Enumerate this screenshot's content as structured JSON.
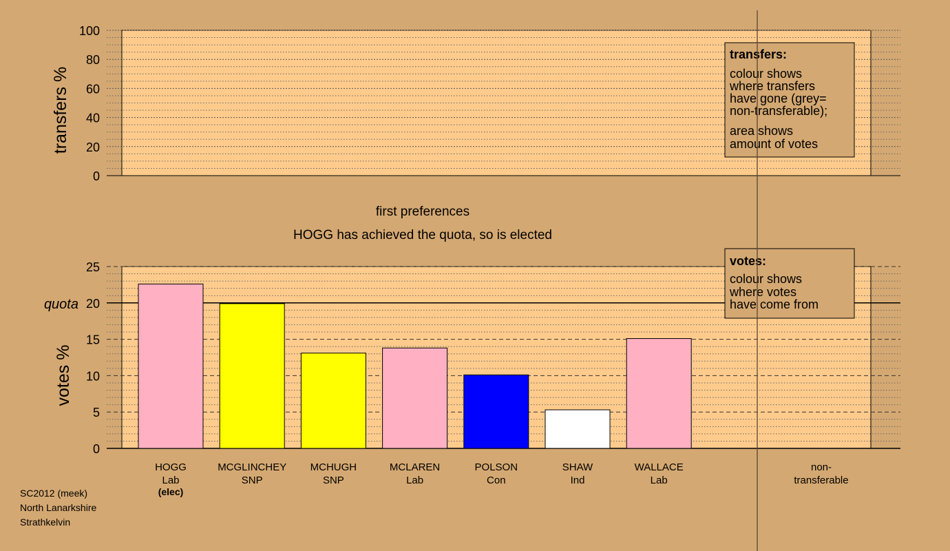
{
  "footer": [
    "SC2012 (meek)",
    "North Lanarkshire",
    "Strathkelvin"
  ],
  "captions": {
    "stage": "first preferences",
    "status": "HOGG has achieved the quota, so is elected"
  },
  "legend_transfers": {
    "title": "transfers:",
    "lines": [
      "colour shows",
      "where transfers",
      "have gone (grey=",
      "non-transferable);",
      "area shows",
      "amount of votes"
    ]
  },
  "legend_votes": {
    "title": "votes:",
    "lines": [
      "colour shows",
      "where votes",
      "have come from"
    ]
  },
  "colors": {
    "background": "#d4a872",
    "plot_bg": "#fecb8c",
    "Lab": "#ffb0c2",
    "SNP": "#ffff00",
    "Con": "#0000ff",
    "Ind": "#ffffff"
  },
  "chart_data": [
    {
      "type": "bar",
      "ylabel": "transfers %",
      "ylim": [
        0,
        100
      ],
      "yticks": [
        0,
        20,
        40,
        60,
        80,
        100
      ],
      "grid": true,
      "values": []
    },
    {
      "type": "bar",
      "ylabel": "votes %",
      "ylim": [
        0,
        25
      ],
      "yticks": [
        0,
        5,
        10,
        15,
        20,
        25
      ],
      "quota": 20,
      "quota_label": "quota",
      "grid": true,
      "categories": [
        {
          "name": "HOGG",
          "party": "Lab",
          "note": "(elec)"
        },
        {
          "name": "MCGLINCHEY",
          "party": "SNP",
          "note": ""
        },
        {
          "name": "MCHUGH",
          "party": "SNP",
          "note": ""
        },
        {
          "name": "MCLAREN",
          "party": "Lab",
          "note": ""
        },
        {
          "name": "POLSON",
          "party": "Con",
          "note": ""
        },
        {
          "name": "SHAW",
          "party": "Ind",
          "note": ""
        },
        {
          "name": "WALLACE",
          "party": "Lab",
          "note": ""
        }
      ],
      "values": [
        22.6,
        19.9,
        13.1,
        13.8,
        10.1,
        5.3,
        15.1
      ],
      "nontransferable_label": [
        "non-",
        "transferable"
      ]
    }
  ]
}
